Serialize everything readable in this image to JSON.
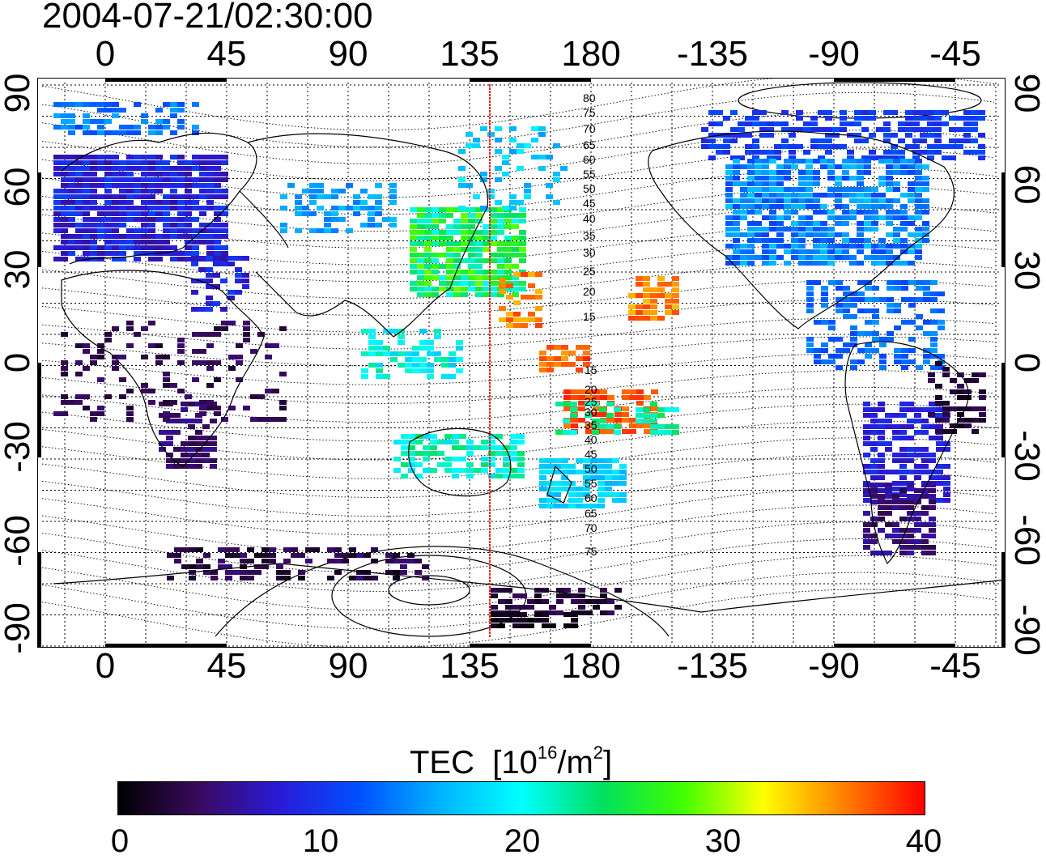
{
  "timestamp": "2004-07-21/02:30:00",
  "lon_ticks": [
    "0",
    "45",
    "90",
    "135",
    "180",
    "-135",
    "-90",
    "-45"
  ],
  "lat_ticks": [
    "90",
    "60",
    "30",
    "0",
    "-30",
    "-60",
    "-90"
  ],
  "contour_labels": [
    "80",
    "75",
    "70",
    "65",
    "60",
    "55",
    "50",
    "45",
    "40",
    "35",
    "30",
    "25",
    "20",
    "15",
    "15",
    "20",
    "25",
    "30",
    "35",
    "40",
    "45",
    "50",
    "55",
    "60",
    "65",
    "70",
    "75"
  ],
  "colorbar": {
    "title": "TEC",
    "units_prefix": "[10",
    "units_exp": "16",
    "units_mid": "/m",
    "units_exp2": "2",
    "units_suffix": "]",
    "ticks": [
      "0",
      "10",
      "20",
      "30",
      "40"
    ],
    "range": [
      0,
      40
    ]
  },
  "colors": {
    "meridian_line": "#e8251c",
    "stops": [
      "#000000",
      "#3a0a5e",
      "#2a1ad8",
      "#0050ff",
      "#00b4ff",
      "#00ffff",
      "#00e060",
      "#40ff00",
      "#ffff00",
      "#ff8000",
      "#ff0000"
    ]
  }
}
